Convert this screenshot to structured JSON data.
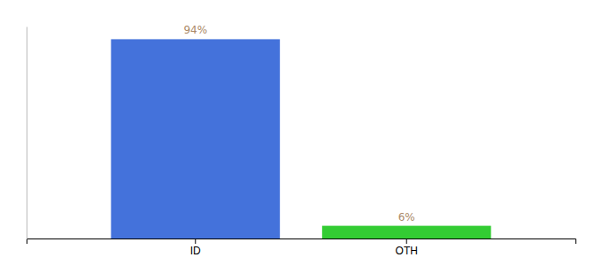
{
  "chart_data": {
    "type": "bar",
    "categories": [
      "ID",
      "OTH"
    ],
    "values": [
      94,
      6
    ],
    "value_labels": [
      "94%",
      "6%"
    ],
    "colors": [
      "#4472db",
      "#33cc33"
    ],
    "ylim": [
      0,
      100
    ],
    "data_labels": true,
    "tick_labels": "x"
  }
}
